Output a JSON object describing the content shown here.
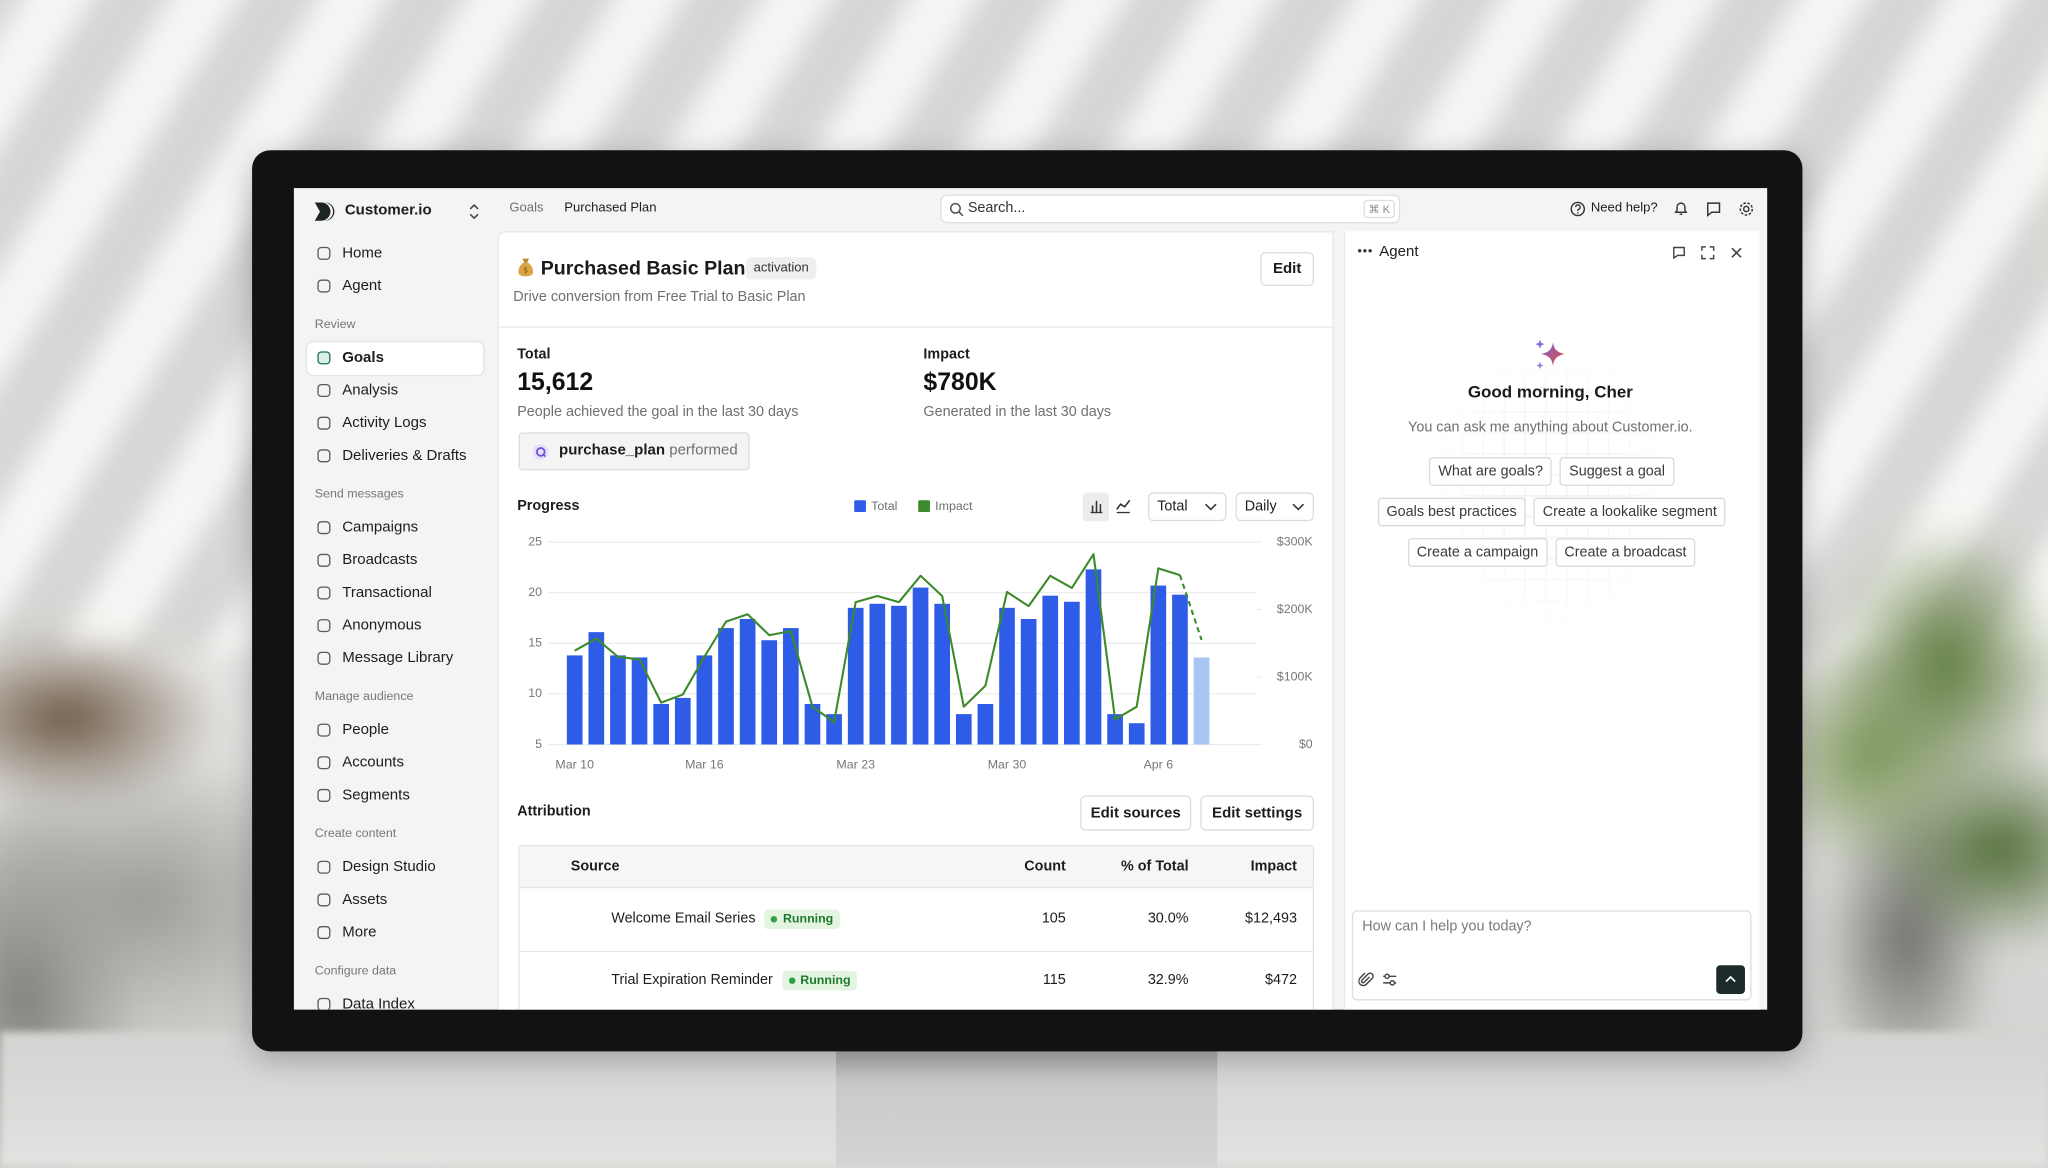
{
  "sidebar": {
    "brand": "Customer.io",
    "groups": [
      {
        "items": [
          {
            "label": "Home"
          },
          {
            "label": "Agent"
          }
        ]
      },
      {
        "heading": "Review",
        "items": [
          {
            "label": "Goals",
            "selected": true
          },
          {
            "label": "Analysis"
          },
          {
            "label": "Activity Logs"
          },
          {
            "label": "Deliveries & Drafts"
          }
        ]
      },
      {
        "heading": "Send messages",
        "items": [
          {
            "label": "Campaigns"
          },
          {
            "label": "Broadcasts"
          },
          {
            "label": "Transactional"
          },
          {
            "label": "Anonymous"
          },
          {
            "label": "Message Library"
          }
        ]
      },
      {
        "heading": "Manage audience",
        "items": [
          {
            "label": "People"
          },
          {
            "label": "Accounts"
          },
          {
            "label": "Segments"
          }
        ]
      },
      {
        "heading": "Create content",
        "items": [
          {
            "label": "Design Studio"
          },
          {
            "label": "Assets"
          },
          {
            "label": "More"
          }
        ]
      },
      {
        "heading": "Configure data",
        "items": [
          {
            "label": "Data Index"
          }
        ]
      }
    ]
  },
  "topbar": {
    "breadcrumb": [
      "Goals",
      "Purchased Plan"
    ],
    "search_placeholder": "Search...",
    "shortcut": "⌘ K",
    "help": "Need help?"
  },
  "goal": {
    "title": "Purchased Basic Plan",
    "tag": "activation",
    "description": "Drive conversion from Free Trial to Basic Plan",
    "edit": "Edit"
  },
  "stats": [
    {
      "label": "Total",
      "value": "15,612",
      "description": "People achieved the goal in the last 30 days"
    },
    {
      "label": "Impact",
      "value": "$780K",
      "description": "Generated in the last 30 days"
    }
  ],
  "event_chip": {
    "event": "purchase_plan",
    "verb": "performed"
  },
  "progress_controls": {
    "metric": "Total",
    "interval": "Daily"
  },
  "chart_data": {
    "type": "combo",
    "title": "Progress",
    "categories": [
      "Mar 10",
      null,
      null,
      null,
      null,
      null,
      "Mar 16",
      null,
      null,
      null,
      null,
      null,
      null,
      "Mar 23",
      null,
      null,
      null,
      null,
      null,
      null,
      "Mar 30",
      null,
      null,
      null,
      null,
      null,
      null,
      "Apr 6",
      null,
      null
    ],
    "series": [
      {
        "name": "Total",
        "type": "bar",
        "color": "#2f5ce6",
        "colors": [
          "#2f5ce6",
          "#2f5ce6",
          "#2f5ce6",
          "#2f5ce6",
          "#2f5ce6",
          "#2f5ce6",
          "#2f5ce6",
          "#2f5ce6",
          "#2f5ce6",
          "#2f5ce6",
          "#2f5ce6",
          "#2f5ce6",
          "#2f5ce6",
          "#2f5ce6",
          "#2f5ce6",
          "#2f5ce6",
          "#2f5ce6",
          "#2f5ce6",
          "#2f5ce6",
          "#2f5ce6",
          "#2f5ce6",
          "#2f5ce6",
          "#2f5ce6",
          "#2f5ce6",
          "#2f5ce6",
          "#2f5ce6",
          "#2f5ce6",
          "#2f5ce6",
          "#2f5ce6",
          "#a9c6f3"
        ],
        "values": [
          13.8,
          16.1,
          13.8,
          13.6,
          9.0,
          9.6,
          13.8,
          16.5,
          17.4,
          15.3,
          16.5,
          9.0,
          8.0,
          18.5,
          18.9,
          18.7,
          20.5,
          18.9,
          8.0,
          9.0,
          18.5,
          17.4,
          19.7,
          19.1,
          22.3,
          8.0,
          7.1,
          20.7,
          19.8,
          13.6
        ]
      },
      {
        "name": "Impact",
        "type": "line",
        "axis": "y2",
        "color": "#3c8a2a",
        "last_segment": "dashed",
        "values": [
          139000,
          157000,
          130000,
          126000,
          62000,
          74000,
          130000,
          182000,
          193000,
          162000,
          168000,
          56000,
          33000,
          211000,
          220000,
          211000,
          250000,
          220000,
          56000,
          87000,
          226000,
          205000,
          250000,
          232000,
          282000,
          37000,
          56000,
          261000,
          251000,
          155000
        ]
      }
    ],
    "ylim": [
      5,
      25
    ],
    "yticks": [
      5,
      10,
      15,
      20,
      25
    ],
    "y2lim": [
      0,
      300000
    ],
    "y2ticks": [
      {
        "value": 0,
        "label": "$0"
      },
      {
        "value": 100000,
        "label": "$100K"
      },
      {
        "value": 200000,
        "label": "$200K"
      },
      {
        "value": 300000,
        "label": "$300K"
      }
    ],
    "grid": true
  },
  "attribution": {
    "title": "Attribution",
    "buttons": [
      "Edit sources",
      "Edit settings"
    ],
    "columns": [
      "Source",
      "Count",
      "% of Total",
      "Impact"
    ],
    "rows": [
      {
        "source": "Welcome Email Series",
        "status": "Running",
        "count": 105,
        "percent": "30.0%",
        "impact": "$12,493"
      },
      {
        "source": "Trial Expiration Reminder",
        "status": "Running",
        "count": 115,
        "percent": "32.9%",
        "impact": "$472"
      }
    ]
  },
  "agent": {
    "title": "Agent",
    "greeting": "Good morning, Cher",
    "subtitle": "You can ask me anything about Customer.io.",
    "suggestions": [
      [
        "What are goals?",
        "Suggest a goal"
      ],
      [
        "Goals best practices",
        "Create a lookalike segment"
      ],
      [
        "Create a campaign",
        "Create a broadcast"
      ]
    ],
    "input_placeholder": "How can I help you today?"
  }
}
